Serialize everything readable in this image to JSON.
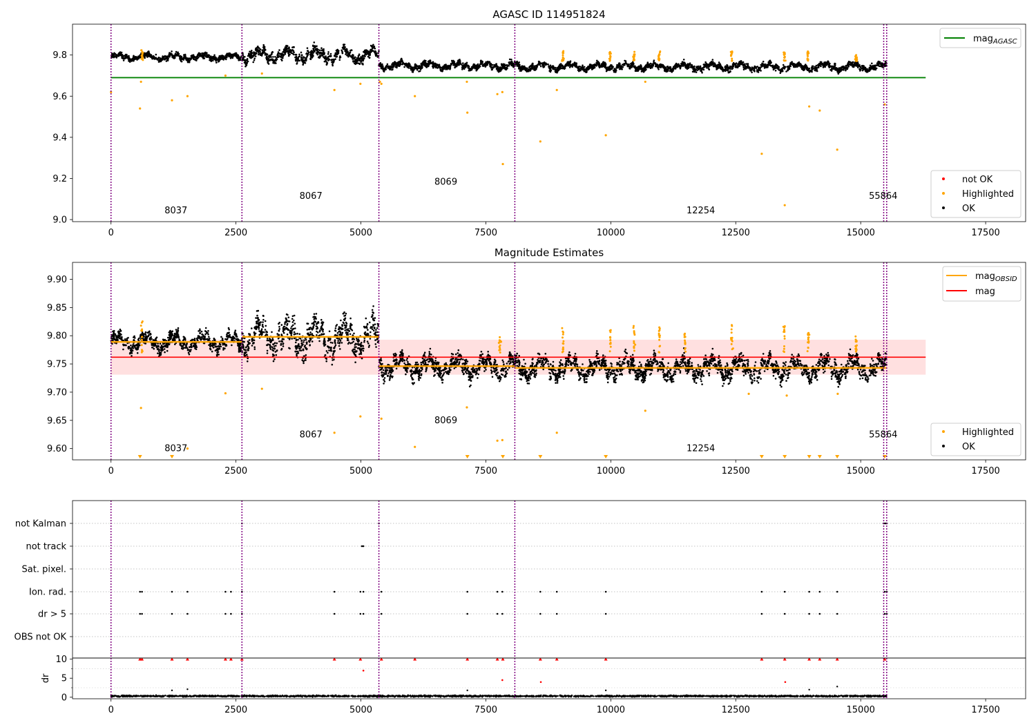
{
  "chart_data": [
    {
      "type": "scatter",
      "title": "AGASC ID 114951824",
      "xlim": [
        -770,
        18300
      ],
      "ylim": [
        8.99,
        9.95
      ],
      "xticks": [
        0,
        2500,
        5000,
        7500,
        10000,
        12500,
        15000,
        17500
      ],
      "yticks": [
        9.0,
        9.2,
        9.4,
        9.6,
        9.8
      ],
      "obsid_boundaries": [
        0,
        2620,
        5360,
        8080,
        15460,
        15520
      ],
      "obsid_labels": [
        {
          "text": "8037",
          "x": 1300,
          "y": 9.03
        },
        {
          "text": "8067",
          "x": 4000,
          "y": 9.1
        },
        {
          "text": "8069",
          "x": 6700,
          "y": 9.17
        },
        {
          "text": "12254",
          "x": 11800,
          "y": 9.03
        },
        {
          "text": "55864",
          "x": 15450,
          "y": 9.1
        }
      ],
      "reference_line": {
        "name": "mag_AGASC",
        "y": 9.69,
        "x_range": [
          0,
          16300
        ],
        "color": "#008000"
      },
      "ok_trend": [
        {
          "x0": 0,
          "x1": 2620,
          "mean": 9.79,
          "spread": 0.022
        },
        {
          "x0": 2620,
          "x1": 5360,
          "mean": 9.8,
          "spread": 0.045
        },
        {
          "x0": 5360,
          "x1": 8080,
          "mean": 9.748,
          "spread": 0.025
        },
        {
          "x0": 8080,
          "x1": 15520,
          "mean": 9.743,
          "spread": 0.025
        }
      ],
      "highlighted_outliers": [
        {
          "x": 0,
          "y": 9.62
        },
        {
          "x": 580,
          "y": 9.54
        },
        {
          "x": 600,
          "y": 9.67
        },
        {
          "x": 1220,
          "y": 9.58
        },
        {
          "x": 1530,
          "y": 9.6
        },
        {
          "x": 2290,
          "y": 9.7
        },
        {
          "x": 3020,
          "y": 9.71
        },
        {
          "x": 4470,
          "y": 9.63
        },
        {
          "x": 4990,
          "y": 9.66
        },
        {
          "x": 5380,
          "y": 9.67
        },
        {
          "x": 5410,
          "y": 9.66
        },
        {
          "x": 6080,
          "y": 9.6
        },
        {
          "x": 7120,
          "y": 9.67
        },
        {
          "x": 7130,
          "y": 9.52
        },
        {
          "x": 7730,
          "y": 9.61
        },
        {
          "x": 7830,
          "y": 9.62
        },
        {
          "x": 7840,
          "y": 9.27
        },
        {
          "x": 8590,
          "y": 9.38
        },
        {
          "x": 8920,
          "y": 9.63
        },
        {
          "x": 9900,
          "y": 9.41
        },
        {
          "x": 10690,
          "y": 9.67
        },
        {
          "x": 13020,
          "y": 9.32
        },
        {
          "x": 13480,
          "y": 9.07
        },
        {
          "x": 13970,
          "y": 9.55
        },
        {
          "x": 14180,
          "y": 9.53
        },
        {
          "x": 14530,
          "y": 9.34
        },
        {
          "x": 15480,
          "y": 9.56
        }
      ],
      "highlight_spikes": [
        {
          "x": 620,
          "top": 9.83
        },
        {
          "x": 9040,
          "top": 9.82
        },
        {
          "x": 9990,
          "top": 9.815
        },
        {
          "x": 10470,
          "top": 9.82
        },
        {
          "x": 10970,
          "top": 9.82
        },
        {
          "x": 12420,
          "top": 9.82
        },
        {
          "x": 13470,
          "top": 9.82
        },
        {
          "x": 13950,
          "top": 9.82
        },
        {
          "x": 14910,
          "top": 9.8
        }
      ],
      "legend_top": [
        {
          "label": "mag",
          "sub": "AGASC",
          "color": "#008000"
        }
      ],
      "legend_bottom": [
        {
          "label": "not OK",
          "color": "#ff0000"
        },
        {
          "label": "Highlighted",
          "color": "#ffa500"
        },
        {
          "label": "OK",
          "color": "#000000"
        }
      ]
    },
    {
      "type": "scatter",
      "title": "Magnitude Estimates",
      "xlim": [
        -770,
        18300
      ],
      "ylim": [
        9.58,
        9.93
      ],
      "xticks": [
        0,
        2500,
        5000,
        7500,
        10000,
        12500,
        15000,
        17500
      ],
      "yticks": [
        9.6,
        9.65,
        9.7,
        9.75,
        9.8,
        9.85,
        9.9
      ],
      "obsid_boundaries": [
        0,
        2620,
        5360,
        8080,
        15460,
        15520
      ],
      "obsid_labels": [
        {
          "text": "8037",
          "x": 1300,
          "y": 9.595
        },
        {
          "text": "8067",
          "x": 4000,
          "y": 9.62
        },
        {
          "text": "8069",
          "x": 6700,
          "y": 9.645
        },
        {
          "text": "12254",
          "x": 11800,
          "y": 9.595
        },
        {
          "text": "55864",
          "x": 15450,
          "y": 9.62
        }
      ],
      "mag_line": {
        "name": "mag",
        "y": 9.762,
        "band": [
          9.731,
          9.793
        ],
        "x_range": [
          0,
          16300
        ],
        "color": "#ff0000"
      },
      "mag_obsid_steps": [
        {
          "x0": 0,
          "x1": 2620,
          "y": 9.789
        },
        {
          "x0": 2620,
          "x1": 5360,
          "y": 9.798
        },
        {
          "x0": 5360,
          "x1": 8080,
          "y": 9.746
        },
        {
          "x0": 8080,
          "x1": 15520,
          "y": 9.743
        }
      ],
      "ok_trend": [
        {
          "x0": 0,
          "x1": 2620,
          "mean": 9.789,
          "spread": 0.02
        },
        {
          "x0": 2620,
          "x1": 5360,
          "mean": 9.798,
          "spread": 0.04
        },
        {
          "x0": 5360,
          "x1": 8080,
          "mean": 9.746,
          "spread": 0.025
        },
        {
          "x0": 8080,
          "x1": 15520,
          "mean": 9.743,
          "spread": 0.025
        }
      ],
      "highlighted_outliers": [
        {
          "x": 600,
          "y": 9.672
        },
        {
          "x": 1530,
          "y": 9.6
        },
        {
          "x": 2290,
          "y": 9.698
        },
        {
          "x": 3020,
          "y": 9.706
        },
        {
          "x": 4470,
          "y": 9.628
        },
        {
          "x": 4990,
          "y": 9.657
        },
        {
          "x": 5410,
          "y": 9.653
        },
        {
          "x": 6080,
          "y": 9.603
        },
        {
          "x": 7120,
          "y": 9.673
        },
        {
          "x": 7730,
          "y": 9.614
        },
        {
          "x": 7830,
          "y": 9.615
        },
        {
          "x": 8920,
          "y": 9.628
        },
        {
          "x": 10690,
          "y": 9.667
        },
        {
          "x": 12760,
          "y": 9.697
        },
        {
          "x": 13520,
          "y": 9.694
        },
        {
          "x": 14540,
          "y": 9.697
        }
      ],
      "below_range_markers": [
        580,
        1220,
        7130,
        7840,
        8590,
        9900,
        13020,
        13480,
        13970,
        14180,
        14530,
        15480
      ],
      "highlight_spikes": [
        {
          "x": 620,
          "top": 9.83
        },
        {
          "x": 9040,
          "top": 9.82
        },
        {
          "x": 9990,
          "top": 9.81
        },
        {
          "x": 10470,
          "top": 9.82
        },
        {
          "x": 10970,
          "top": 9.82
        },
        {
          "x": 11490,
          "top": 9.81
        },
        {
          "x": 12420,
          "top": 9.82
        },
        {
          "x": 13470,
          "top": 9.82
        },
        {
          "x": 13950,
          "top": 9.82
        },
        {
          "x": 14910,
          "top": 9.8
        },
        {
          "x": 7780,
          "top": 9.81
        }
      ],
      "legend_top": [
        {
          "label": "mag",
          "sub": "OBSID",
          "color": "#ffa500"
        },
        {
          "label": "mag",
          "sub": "",
          "color": "#ff0000"
        }
      ],
      "legend_bottom": [
        {
          "label": "Highlighted",
          "color": "#ffa500"
        },
        {
          "label": "OK",
          "color": "#000000"
        }
      ]
    },
    {
      "type": "scatter",
      "title": "",
      "xlim": [
        -770,
        18300
      ],
      "xticks": [
        0,
        2500,
        5000,
        7500,
        10000,
        12500,
        15000,
        17500
      ],
      "flag_rows": [
        "not Kalman",
        "not track",
        "Sat. pixel.",
        "Ion. rad.",
        "dr > 5",
        "OBS not OK"
      ],
      "flag_points": {
        "not Kalman": [
          2620,
          5360,
          15460,
          15490,
          15520
        ],
        "not track": [
          5020,
          5050
        ],
        "Sat. pixel.": [],
        "Ion. rad.": [
          580,
          620,
          1220,
          1530,
          2290,
          2400,
          2620,
          4470,
          4990,
          5050,
          5410,
          7130,
          7730,
          7830,
          8590,
          8920,
          9900,
          13020,
          13480,
          13970,
          14180,
          14530,
          15480,
          15520
        ],
        "dr > 5": [
          580,
          620,
          1220,
          1530,
          2290,
          2400,
          2620,
          4470,
          4990,
          5050,
          5410,
          7130,
          7730,
          7830,
          8590,
          8920,
          9900,
          13020,
          13480,
          13970,
          14180,
          14530,
          15480,
          15520
        ],
        "OBS not OK": []
      },
      "dr_ylabel": "dr",
      "dr_ylim": [
        -0.4,
        10.3
      ],
      "dr_yticks": [
        0,
        5,
        10
      ],
      "dr_clipped_at": 10,
      "dr_large_points": [
        {
          "x": 580,
          "y": 10
        },
        {
          "x": 620,
          "y": 10
        },
        {
          "x": 1220,
          "y": 10
        },
        {
          "x": 1530,
          "y": 10
        },
        {
          "x": 2290,
          "y": 10
        },
        {
          "x": 2400,
          "y": 10
        },
        {
          "x": 2620,
          "y": 10
        },
        {
          "x": 4470,
          "y": 10
        },
        {
          "x": 4990,
          "y": 10
        },
        {
          "x": 5050,
          "y": 7
        },
        {
          "x": 5410,
          "y": 10
        },
        {
          "x": 6080,
          "y": 10
        },
        {
          "x": 7130,
          "y": 10
        },
        {
          "x": 7730,
          "y": 10
        },
        {
          "x": 7830,
          "y": 4.5
        },
        {
          "x": 7840,
          "y": 10
        },
        {
          "x": 8590,
          "y": 10
        },
        {
          "x": 8600,
          "y": 4
        },
        {
          "x": 8920,
          "y": 10
        },
        {
          "x": 9900,
          "y": 10
        },
        {
          "x": 13020,
          "y": 10
        },
        {
          "x": 13480,
          "y": 10
        },
        {
          "x": 13490,
          "y": 4
        },
        {
          "x": 13970,
          "y": 10
        },
        {
          "x": 14180,
          "y": 10
        },
        {
          "x": 14530,
          "y": 10
        },
        {
          "x": 15480,
          "y": 10
        }
      ],
      "dr_small_points": [
        {
          "x": 1220,
          "y": 1.8
        },
        {
          "x": 1530,
          "y": 2.1
        },
        {
          "x": 7130,
          "y": 1.8
        },
        {
          "x": 9900,
          "y": 1.8
        },
        {
          "x": 13970,
          "y": 2
        },
        {
          "x": 14530,
          "y": 2.8
        }
      ],
      "dr_baseline": {
        "mean": 0.3,
        "spread": 0.3,
        "x_range": [
          0,
          15520
        ]
      }
    }
  ]
}
